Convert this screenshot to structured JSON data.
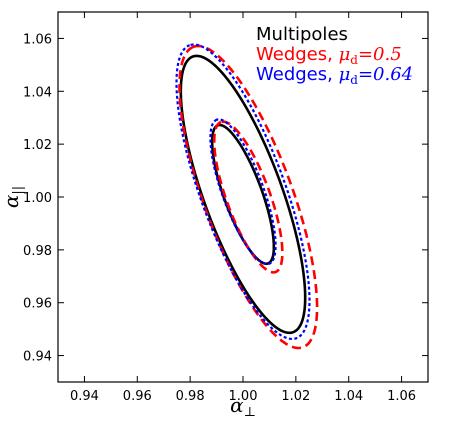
{
  "chart_data": {
    "type": "line",
    "title": "",
    "xlabel": "α",
    "xlabel_sub": "⊥",
    "ylabel": "α",
    "ylabel_sub": "||",
    "xlim": [
      0.93,
      1.07
    ],
    "ylim": [
      0.93,
      1.07
    ],
    "x_ticks": [
      "0.94",
      "0.96",
      "0.98",
      "1.00",
      "1.02",
      "1.04",
      "1.06"
    ],
    "y_ticks": [
      "0.94",
      "0.96",
      "0.98",
      "1.00",
      "1.02",
      "1.04",
      "1.06"
    ],
    "legend_position": "top-right",
    "series": [
      {
        "name": "Multipoles",
        "legend_text": "Multipoles",
        "legend_math": "",
        "legend_sub": "",
        "legend_value": "",
        "color": "#000000",
        "style": "solid",
        "contours": [
          {
            "center": [
              1.0,
              1.001
            ],
            "semi_major": 0.0278,
            "semi_minor": 0.0072,
            "angle_deg": 110
          },
          {
            "center": [
              1.0,
              1.001
            ],
            "semi_major": 0.0555,
            "semi_minor": 0.0148,
            "angle_deg": 110
          }
        ]
      },
      {
        "name": "Wedges, μd=0.5",
        "legend_text": "Wedges, ",
        "legend_math": "μ",
        "legend_sub": "d",
        "legend_value": "=0.5",
        "color": "#ff0000",
        "style": "dashed",
        "contours": [
          {
            "center": [
              1.002,
              1.0
            ],
            "semi_major": 0.0302,
            "semi_minor": 0.0082,
            "angle_deg": 110
          },
          {
            "center": [
              1.002,
              1.0
            ],
            "semi_major": 0.0605,
            "semi_minor": 0.0168,
            "angle_deg": 110
          }
        ]
      },
      {
        "name": "Wedges, μd=0.64",
        "legend_text": "Wedges, ",
        "legend_math": "μ",
        "legend_sub": "d",
        "legend_value": "=0.64",
        "color": "#0000ff",
        "style": "dotted",
        "contours": [
          {
            "center": [
              1.0,
              1.002
            ],
            "semi_major": 0.029,
            "semi_minor": 0.0078,
            "angle_deg": 110
          },
          {
            "center": [
              1.0,
              1.002
            ],
            "semi_major": 0.059,
            "semi_minor": 0.016,
            "angle_deg": 110
          }
        ]
      }
    ]
  }
}
